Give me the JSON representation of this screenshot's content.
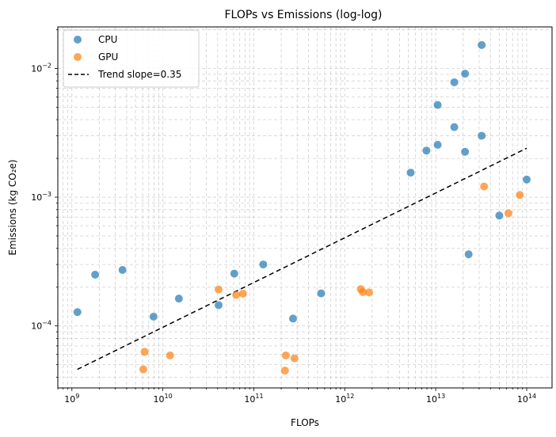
{
  "chart_data": {
    "type": "scatter",
    "title": "FLOPs vs Emissions (log-log)",
    "xlabel": "FLOPs",
    "ylabel": "Emissions (kg CO₂e)",
    "xscale": "log",
    "yscale": "log",
    "xlim": [
      700000000.0,
      190000000000000.0
    ],
    "ylim": [
      3.3e-05,
      0.021
    ],
    "grid": true,
    "legend_position": "top-left",
    "x_ticks": [
      {
        "value": 1000000000.0,
        "base": "10",
        "exp": "9"
      },
      {
        "value": 10000000000.0,
        "base": "10",
        "exp": "10"
      },
      {
        "value": 100000000000.0,
        "base": "10",
        "exp": "11"
      },
      {
        "value": 1000000000000.0,
        "base": "10",
        "exp": "12"
      },
      {
        "value": 10000000000000.0,
        "base": "10",
        "exp": "13"
      },
      {
        "value": 100000000000000.0,
        "base": "10",
        "exp": "14"
      }
    ],
    "y_ticks": [
      {
        "value": 0.0001,
        "base": "10",
        "exp": "−4"
      },
      {
        "value": 0.001,
        "base": "10",
        "exp": "−3"
      },
      {
        "value": 0.01,
        "base": "10",
        "exp": "−2"
      }
    ],
    "series": [
      {
        "name": "CPU",
        "color": "#1f77b4",
        "points": [
          [
            1150000000.0,
            0.000128
          ],
          [
            1800000000.0,
            0.00025
          ],
          [
            3600000000.0,
            0.000272
          ],
          [
            7900000000.0,
            0.000118
          ],
          [
            15000000000.0,
            0.000163
          ],
          [
            41000000000.0,
            0.000145
          ],
          [
            61000000000.0,
            0.000255
          ],
          [
            127000000000.0,
            0.0003
          ],
          [
            270000000000.0,
            0.000114
          ],
          [
            550000000000.0,
            0.000179
          ],
          [
            5300000000000.0,
            0.00155
          ],
          [
            7900000000000.0,
            0.0023
          ],
          [
            10500000000000.0,
            0.00255
          ],
          [
            10500000000000.0,
            0.0052
          ],
          [
            16000000000000.0,
            0.0035
          ],
          [
            16000000000000.0,
            0.0078
          ],
          [
            21000000000000.0,
            0.0091
          ],
          [
            21000000000000.0,
            0.00225
          ],
          [
            23000000000000.0,
            0.00036
          ],
          [
            32000000000000.0,
            0.0152
          ],
          [
            32000000000000.0,
            0.003
          ],
          [
            50000000000000.0,
            0.00072
          ],
          [
            100000000000000.0,
            0.00137
          ]
        ]
      },
      {
        "name": "GPU",
        "color": "#ff7f0e",
        "points": [
          [
            6100000000.0,
            4.6e-05
          ],
          [
            6300000000.0,
            6.3e-05
          ],
          [
            12000000000.0,
            5.9e-05
          ],
          [
            41000000000.0,
            0.000192
          ],
          [
            64000000000.0,
            0.000174
          ],
          [
            76000000000.0,
            0.000178
          ],
          [
            220000000000.0,
            4.5e-05
          ],
          [
            225000000000.0,
            5.9e-05
          ],
          [
            280000000000.0,
            5.6e-05
          ],
          [
            1500000000000.0,
            0.000193
          ],
          [
            1580000000000.0,
            0.000183
          ],
          [
            1850000000000.0,
            0.000182
          ],
          [
            34000000000000.0,
            0.00121
          ],
          [
            63000000000000.0,
            0.00075
          ],
          [
            84000000000000.0,
            0.00104
          ]
        ]
      }
    ],
    "trend": {
      "name": "Trend slope=0.35",
      "slope": 0.35,
      "color": "#000000",
      "points": [
        [
          1150000000.0,
          4.6e-05
        ],
        [
          100000000000000.0,
          0.0024
        ]
      ]
    }
  }
}
